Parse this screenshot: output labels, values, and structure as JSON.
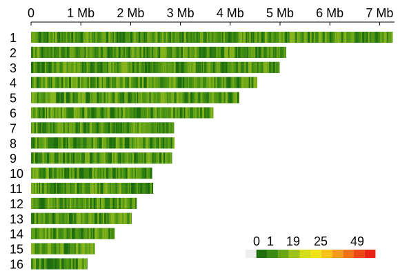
{
  "chart_data": {
    "type": "heatmap",
    "title": "",
    "xlabel": "",
    "ylabel": "",
    "x_axis": {
      "unit": "Mb",
      "ticks": [
        {
          "value": 0,
          "label": "0"
        },
        {
          "value": 1,
          "label": "1 Mb"
        },
        {
          "value": 2,
          "label": "2 Mb"
        },
        {
          "value": 3,
          "label": "3 Mb"
        },
        {
          "value": 4,
          "label": "4 Mb"
        },
        {
          "value": 5,
          "label": "5 Mb"
        },
        {
          "value": 6,
          "label": "6 Mb"
        },
        {
          "value": 7,
          "label": "7 Mb"
        }
      ],
      "range": [
        0,
        7.3
      ]
    },
    "chromosomes": [
      {
        "label": "1",
        "length_mb": 7.26
      },
      {
        "label": "2",
        "length_mb": 5.12
      },
      {
        "label": "3",
        "length_mb": 4.99
      },
      {
        "label": "4",
        "length_mb": 4.54
      },
      {
        "label": "5",
        "length_mb": 4.18
      },
      {
        "label": "6",
        "length_mb": 3.66
      },
      {
        "label": "7",
        "length_mb": 2.87
      },
      {
        "label": "8",
        "length_mb": 2.88
      },
      {
        "label": "9",
        "length_mb": 2.83
      },
      {
        "label": "10",
        "length_mb": 2.43
      },
      {
        "label": "11",
        "length_mb": 2.45
      },
      {
        "label": "12",
        "length_mb": 2.12
      },
      {
        "label": "13",
        "length_mb": 2.02
      },
      {
        "label": "14",
        "length_mb": 1.68
      },
      {
        "label": "15",
        "length_mb": 1.28
      },
      {
        "label": "16",
        "length_mb": 1.13
      }
    ],
    "legend": {
      "placement": "bottom-right",
      "labels": [
        "0",
        "1",
        "19",
        "25",
        "49"
      ],
      "colors": [
        "#eeeeee",
        "#1f6f0f",
        "#3a8a12",
        "#6aa516",
        "#9ec21a",
        "#d4de1c",
        "#f2e21a",
        "#f7c21a",
        "#f39b1c",
        "#ef7118",
        "#eb4a16",
        "#ea2412"
      ]
    },
    "stripe_colors": [
      "#1e6e10",
      "#2f7d12",
      "#3e8a13",
      "#4f9615",
      "#5fa018",
      "#72a91b",
      "#86b41d"
    ]
  }
}
